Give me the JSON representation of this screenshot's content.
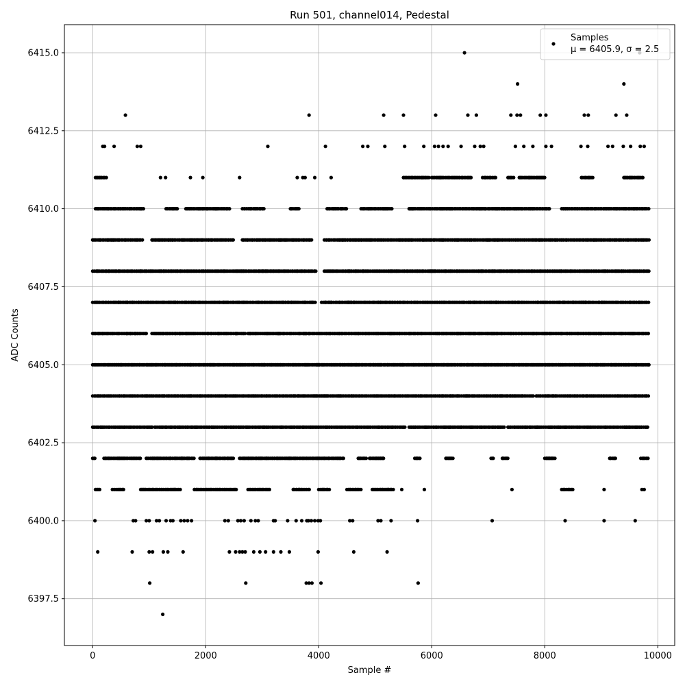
{
  "chart_data": {
    "type": "scatter",
    "title": "Run 501, channel014, Pedestal",
    "xlabel": "Sample #",
    "ylabel": "ADC Counts",
    "xlim": [
      -500,
      10300
    ],
    "ylim": [
      6396.0,
      6415.9
    ],
    "xticks": [
      0,
      2000,
      4000,
      6000,
      8000,
      10000
    ],
    "xtick_labels": [
      "0",
      "2000",
      "4000",
      "6000",
      "8000",
      "10000"
    ],
    "yticks": [
      6397.5,
      6400.0,
      6402.5,
      6405.0,
      6407.5,
      6410.0,
      6412.5,
      6415.0
    ],
    "ytick_labels": [
      "6397.5",
      "6400.0",
      "6402.5",
      "6405.0",
      "6407.5",
      "6410.0",
      "6412.5",
      "6415.0"
    ],
    "grid": true,
    "legend_position": "top-right",
    "marker_color": "#000000",
    "series": [
      {
        "name": "Samples",
        "stats_label": "μ = 6405.9, σ = 2.5",
        "x_range": [
          0,
          9850
        ],
        "levels": [
          {
            "y": 6403,
            "segments": [
              [
                0,
                1080
              ],
              [
                1100,
                5530
              ],
              [
                5600,
                7300
              ],
              [
                7350,
                9850
              ]
            ]
          },
          {
            "y": 6404,
            "segments": [
              [
                0,
                6800
              ],
              [
                6820,
                7800
              ],
              [
                7850,
                9850
              ]
            ]
          },
          {
            "y": 6405,
            "segments": [
              [
                0,
                9850
              ]
            ]
          },
          {
            "y": 6406,
            "segments": [
              [
                0,
                960
              ],
              [
                1050,
                2700
              ],
              [
                2750,
                9850
              ]
            ]
          },
          {
            "y": 6407,
            "segments": [
              [
                0,
                3960
              ],
              [
                4050,
                9850
              ]
            ]
          },
          {
            "y": 6408,
            "segments": [
              [
                0,
                3950
              ],
              [
                4100,
                9850
              ]
            ]
          },
          {
            "y": 6409,
            "segments": [
              [
                0,
                900
              ],
              [
                1050,
                2500
              ],
              [
                2650,
                3900
              ],
              [
                4100,
                9850
              ]
            ]
          },
          {
            "y": 6410,
            "segments": [
              [
                50,
                900
              ],
              [
                1300,
                1500
              ],
              [
                1650,
                2450
              ],
              [
                2650,
                3050
              ],
              [
                3500,
                3650
              ],
              [
                4150,
                4500
              ],
              [
                4750,
                5300
              ],
              [
                5600,
                8100
              ],
              [
                8300,
                9850
              ]
            ]
          },
          {
            "y": 6402,
            "segments": [
              [
                0,
                50
              ],
              [
                200,
                850
              ],
              [
                950,
                1800
              ],
              [
                1900,
                2500
              ],
              [
                2600,
                4450
              ],
              [
                4700,
                4850
              ],
              [
                4900,
                5150
              ],
              [
                5700,
                5800
              ],
              [
                6250,
                6400
              ],
              [
                7050,
                7100
              ],
              [
                7250,
                7350
              ],
              [
                8000,
                8200
              ],
              [
                9150,
                9250
              ],
              [
                9700,
                9850
              ]
            ]
          },
          {
            "y": 6401,
            "segments": [
              [
                50,
                150
              ],
              [
                350,
                550
              ],
              [
                850,
                1550
              ],
              [
                1800,
                2550
              ],
              [
                2750,
                3150
              ],
              [
                3550,
                3850
              ],
              [
                4000,
                4200
              ],
              [
                4500,
                4750
              ],
              [
                4950,
                5300
              ],
              [
                8300,
                8500
              ]
            ]
          },
          {
            "y": 6411,
            "segments": [
              [
                50,
                250
              ],
              [
                5500,
                5950
              ],
              [
                6000,
                6700
              ],
              [
                6900,
                7150
              ],
              [
                7350,
                7450
              ],
              [
                7550,
                8000
              ],
              [
                8650,
                8850
              ],
              [
                9400,
                9750
              ]
            ]
          }
        ],
        "points": [
          [
            40,
            6400
          ],
          [
            90,
            6399
          ],
          [
            180,
            6412
          ],
          [
            210,
            6412
          ],
          [
            380,
            6412
          ],
          [
            580,
            6413
          ],
          [
            790,
            6412
          ],
          [
            850,
            6412
          ],
          [
            720,
            6400
          ],
          [
            760,
            6400
          ],
          [
            700,
            6399
          ],
          [
            950,
            6400
          ],
          [
            1000,
            6400
          ],
          [
            1000,
            6399
          ],
          [
            1060,
            6399
          ],
          [
            1010,
            6398
          ],
          [
            1130,
            6400
          ],
          [
            1180,
            6400
          ],
          [
            1250,
            6399
          ],
          [
            1240,
            6397
          ],
          [
            1300,
            6400
          ],
          [
            1330,
            6399
          ],
          [
            1380,
            6400
          ],
          [
            1420,
            6400
          ],
          [
            1560,
            6400
          ],
          [
            1620,
            6400
          ],
          [
            1680,
            6400
          ],
          [
            1600,
            6399
          ],
          [
            1750,
            6400
          ],
          [
            1200,
            6411
          ],
          [
            1290,
            6411
          ],
          [
            1730,
            6411
          ],
          [
            1950,
            6411
          ],
          [
            2340,
            6400
          ],
          [
            2400,
            6400
          ],
          [
            2420,
            6399
          ],
          [
            2530,
            6399
          ],
          [
            2570,
            6400
          ],
          [
            2620,
            6400
          ],
          [
            2680,
            6400
          ],
          [
            2600,
            6399
          ],
          [
            2650,
            6399
          ],
          [
            2700,
            6399
          ],
          [
            2710,
            6398
          ],
          [
            2600,
            6411
          ],
          [
            2800,
            6400
          ],
          [
            2880,
            6400
          ],
          [
            2930,
            6400
          ],
          [
            2850,
            6399
          ],
          [
            2960,
            6399
          ],
          [
            3060,
            6399
          ],
          [
            3100,
            6412
          ],
          [
            3200,
            6400
          ],
          [
            3230,
            6400
          ],
          [
            3200,
            6399
          ],
          [
            3330,
            6399
          ],
          [
            3450,
            6400
          ],
          [
            3480,
            6399
          ],
          [
            3600,
            6400
          ],
          [
            3620,
            6411
          ],
          [
            3700,
            6400
          ],
          [
            3720,
            6411
          ],
          [
            3760,
            6411
          ],
          [
            3790,
            6400
          ],
          [
            3820,
            6400
          ],
          [
            3870,
            6400
          ],
          [
            3930,
            6400
          ],
          [
            3990,
            6400
          ],
          [
            4030,
            6400
          ],
          [
            3780,
            6398
          ],
          [
            3830,
            6398
          ],
          [
            3880,
            6398
          ],
          [
            4040,
            6398
          ],
          [
            3830,
            6413
          ],
          [
            3930,
            6411
          ],
          [
            3990,
            6399
          ],
          [
            4120,
            6412
          ],
          [
            4220,
            6411
          ],
          [
            4550,
            6400
          ],
          [
            4600,
            6400
          ],
          [
            4620,
            6399
          ],
          [
            4780,
            6412
          ],
          [
            4870,
            6412
          ],
          [
            5050,
            6400
          ],
          [
            5100,
            6400
          ],
          [
            5150,
            6413
          ],
          [
            5170,
            6412
          ],
          [
            5210,
            6399
          ],
          [
            5280,
            6400
          ],
          [
            5320,
            6401
          ],
          [
            5470,
            6401
          ],
          [
            5500,
            6413
          ],
          [
            5520,
            6412
          ],
          [
            5750,
            6400
          ],
          [
            5760,
            6398
          ],
          [
            5870,
            6401
          ],
          [
            5860,
            6412
          ],
          [
            6070,
            6413
          ],
          [
            6050,
            6412
          ],
          [
            6120,
            6412
          ],
          [
            6200,
            6412
          ],
          [
            6290,
            6412
          ],
          [
            6520,
            6412
          ],
          [
            6580,
            6415
          ],
          [
            6640,
            6413
          ],
          [
            6790,
            6413
          ],
          [
            6760,
            6412
          ],
          [
            6860,
            6412
          ],
          [
            6920,
            6412
          ],
          [
            7070,
            6400
          ],
          [
            7420,
            6401
          ],
          [
            7400,
            6413
          ],
          [
            7480,
            6412
          ],
          [
            7520,
            6414
          ],
          [
            7510,
            6413
          ],
          [
            7570,
            6413
          ],
          [
            7630,
            6412
          ],
          [
            7790,
            6412
          ],
          [
            7920,
            6413
          ],
          [
            8020,
            6413
          ],
          [
            8020,
            6412
          ],
          [
            8120,
            6412
          ],
          [
            8360,
            6400
          ],
          [
            8700,
            6413
          ],
          [
            8770,
            6413
          ],
          [
            8640,
            6412
          ],
          [
            8760,
            6412
          ],
          [
            9050,
            6400
          ],
          [
            9050,
            6401
          ],
          [
            9120,
            6412
          ],
          [
            9200,
            6412
          ],
          [
            9260,
            6413
          ],
          [
            9400,
            6414
          ],
          [
            9450,
            6413
          ],
          [
            9390,
            6412
          ],
          [
            9520,
            6412
          ],
          [
            9600,
            6400
          ],
          [
            9680,
            6415
          ],
          [
            9690,
            6412
          ],
          [
            9760,
            6412
          ],
          [
            9720,
            6401
          ],
          [
            9760,
            6401
          ]
        ]
      }
    ]
  }
}
